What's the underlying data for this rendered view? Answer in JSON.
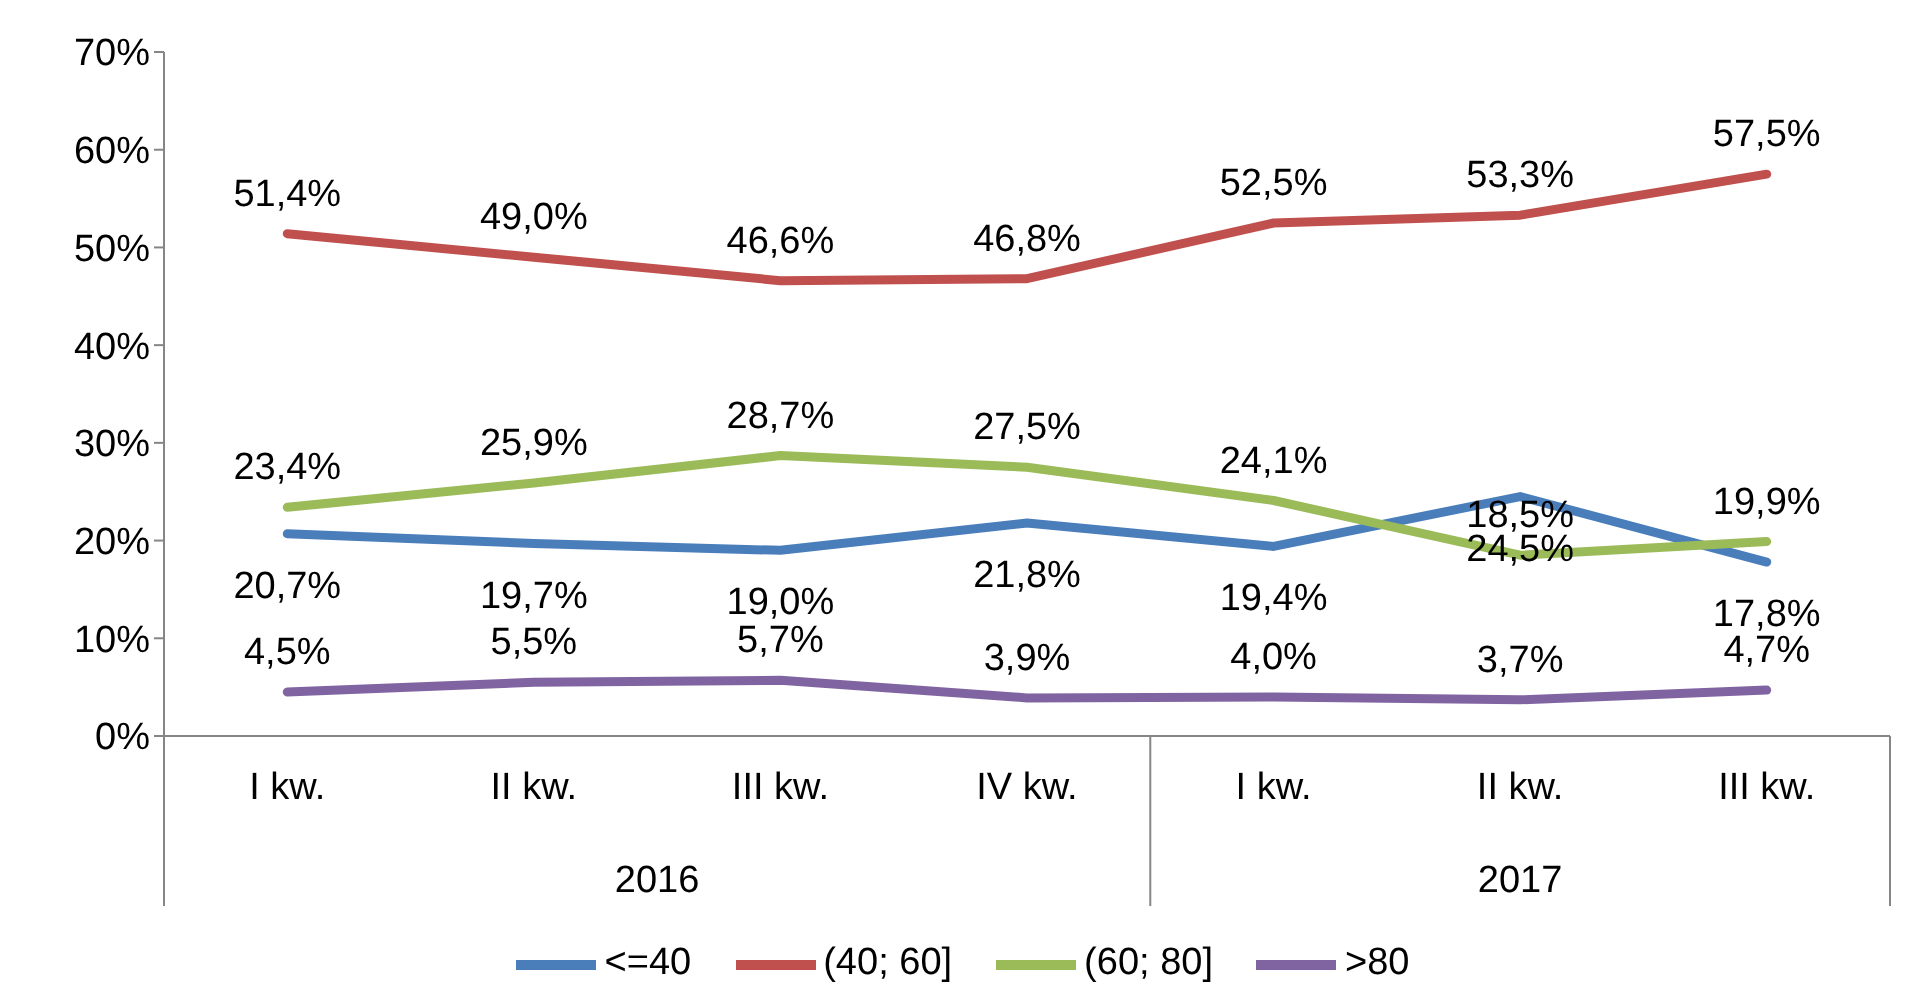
{
  "chart_data": {
    "type": "line",
    "categories": [
      "I kw.",
      "II kw.",
      "III kw.",
      "IV kw.",
      "I kw.",
      "II kw.",
      "III kw."
    ],
    "annotations": [
      "2016",
      "2017"
    ],
    "series": [
      {
        "name": "<=40",
        "color": "#4a7ebb",
        "values": [
          20.7,
          19.7,
          19.0,
          21.8,
          19.4,
          24.5,
          17.8
        ],
        "value_labels": [
          "20,7%",
          "19,7%",
          "19,0%",
          "21,8%",
          "19,4%",
          "24,5%",
          "17,8%"
        ]
      },
      {
        "name": "(40; 60]",
        "color": "#c0504d",
        "values": [
          51.4,
          49.0,
          46.6,
          46.8,
          52.5,
          53.3,
          57.5
        ],
        "value_labels": [
          "51,4%",
          "49,0%",
          "46,6%",
          "46,8%",
          "52,5%",
          "53,3%",
          "57,5%"
        ]
      },
      {
        "name": "(60; 80]",
        "color": "#9bbb59",
        "values": [
          23.4,
          25.9,
          28.7,
          27.5,
          24.1,
          18.5,
          19.9
        ],
        "value_labels": [
          "23,4%",
          "25,9%",
          "28,7%",
          "27,5%",
          "24,1%",
          "18,5%",
          "19,9%"
        ]
      },
      {
        "name": ">80",
        "color": "#8064a2",
        "values": [
          4.5,
          5.5,
          5.7,
          3.9,
          4.0,
          3.7,
          4.7
        ],
        "value_labels": [
          "4,5%",
          "5,5%",
          "5,7%",
          "3,9%",
          "4,0%",
          "3,7%",
          "4,7%"
        ]
      }
    ],
    "ylim": [
      0,
      70
    ],
    "yticks": [
      {
        "value": 0,
        "label": "0%"
      },
      {
        "value": 10,
        "label": "10%"
      },
      {
        "value": 20,
        "label": "20%"
      },
      {
        "value": 30,
        "label": "30%"
      },
      {
        "value": 40,
        "label": "40%"
      },
      {
        "value": 50,
        "label": "50%"
      },
      {
        "value": 60,
        "label": "60%"
      },
      {
        "value": 70,
        "label": "70%"
      }
    ],
    "grid": false,
    "legend": "bottom",
    "marker": "none",
    "line_style": "solid"
  }
}
